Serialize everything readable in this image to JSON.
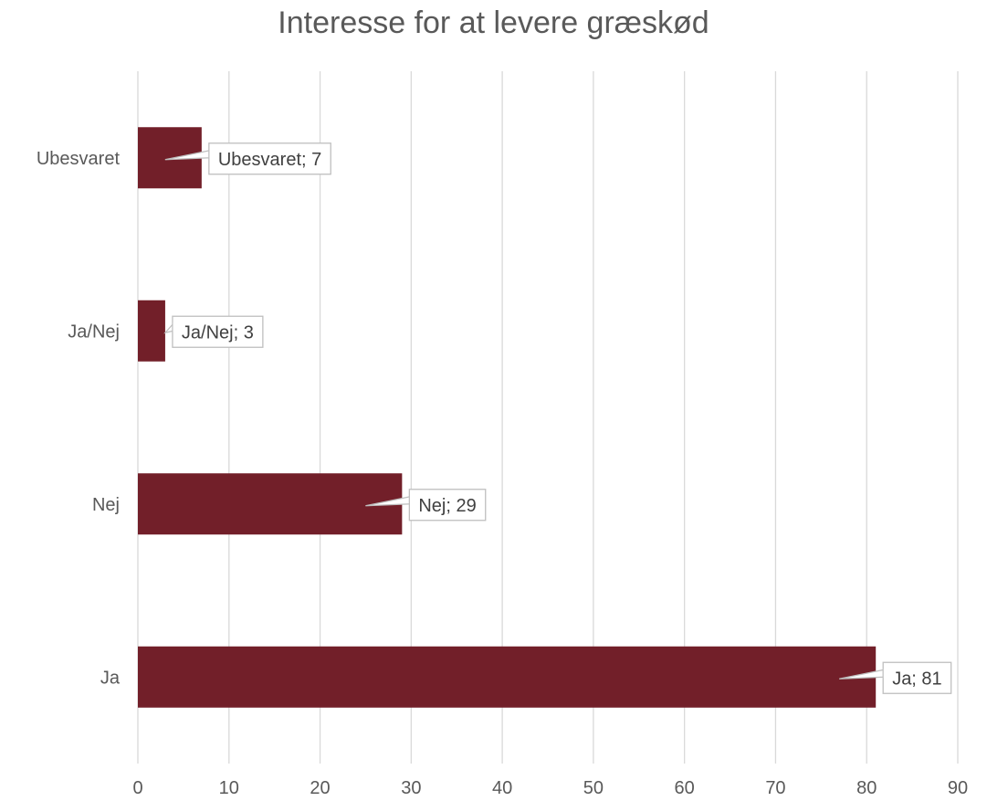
{
  "chart_data": {
    "type": "bar",
    "orientation": "horizontal",
    "title": "Interesse for at levere græskød",
    "categories": [
      "Ubesvaret",
      "Ja/Nej",
      "Nej",
      "Ja"
    ],
    "values": [
      7,
      3,
      29,
      81
    ],
    "data_labels": [
      "Ubesvaret; 7",
      "Ja/Nej; 3",
      "Nej; 29",
      "Ja; 81"
    ],
    "xlim": [
      0,
      90
    ],
    "x_ticks": [
      0,
      10,
      20,
      30,
      40,
      50,
      60,
      70,
      80,
      90
    ],
    "x_tick_labels": [
      "0",
      "10",
      "20",
      "30",
      "40",
      "50",
      "60",
      "70",
      "80",
      "90"
    ],
    "grid": "vertical",
    "legend": "none",
    "bar_color": "#721f29",
    "gridline_color": "#d9d9d9"
  }
}
